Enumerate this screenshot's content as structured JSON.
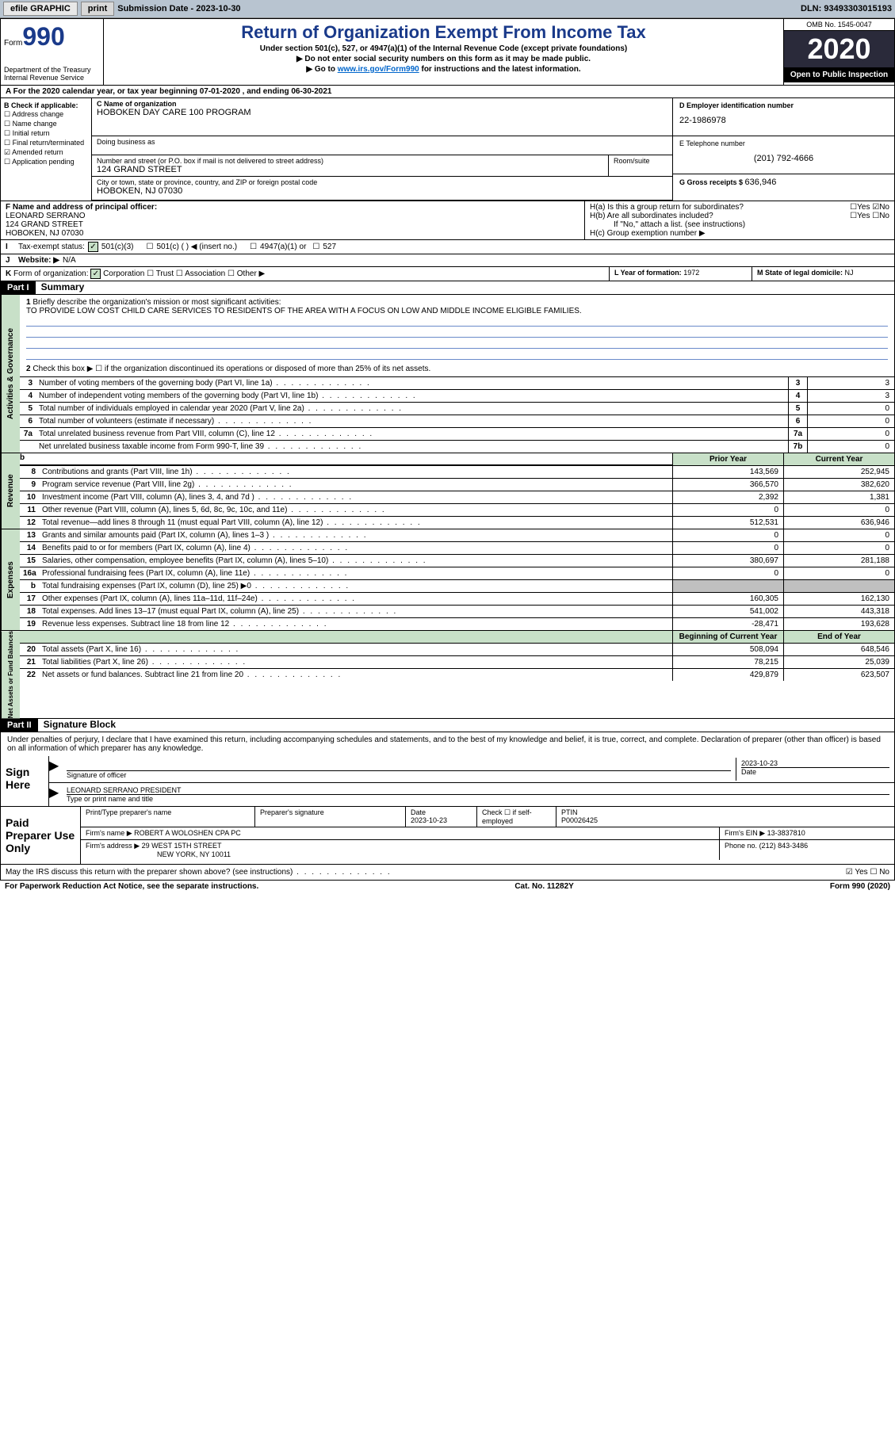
{
  "toolbar": {
    "efile": "efile GRAPHIC",
    "print": "print",
    "submission_label": "Submission Date - ",
    "submission_date": "2023-10-30",
    "dln_label": "DLN: ",
    "dln": "93493303015193"
  },
  "header": {
    "form_word": "Form",
    "form_num": "990",
    "title": "Return of Organization Exempt From Income Tax",
    "subtitle": "Under section 501(c), 527, or 4947(a)(1) of the Internal Revenue Code (except private foundations)",
    "note1": "▶ Do not enter social security numbers on this form as it may be made public.",
    "note2_pre": "▶ Go to ",
    "note2_link": "www.irs.gov/Form990",
    "note2_post": " for instructions and the latest information.",
    "dept": "Department of the Treasury\nInternal Revenue Service",
    "omb": "OMB No. 1545-0047",
    "year": "2020",
    "inspect": "Open to Public Inspection"
  },
  "line_a": "For the 2020 calendar year, or tax year beginning 07-01-2020    , and ending 06-30-2021",
  "box_b": {
    "hdr": "B Check if applicable:",
    "addr_change": "Address change",
    "name_change": "Name change",
    "initial": "Initial return",
    "final": "Final return/terminated",
    "amended": "Amended return",
    "application": "Application pending"
  },
  "org": {
    "name_label": "C Name of organization",
    "name": "HOBOKEN DAY CARE 100 PROGRAM",
    "dba_label": "Doing business as",
    "addr_label": "Number and street (or P.O. box if mail is not delivered to street address)",
    "addr": "124 GRAND STREET",
    "room_label": "Room/suite",
    "city_label": "City or town, state or province, country, and ZIP or foreign postal code",
    "city": "HOBOKEN, NJ  07030"
  },
  "ein": {
    "label": "D Employer identification number",
    "value": "22-1986978"
  },
  "phone": {
    "label": "E Telephone number",
    "value": "(201) 792-4666"
  },
  "receipts": {
    "label": "G Gross receipts $ ",
    "value": "636,946"
  },
  "officer": {
    "label": "F Name and address of principal officer:",
    "name": "LEONARD SERRANO",
    "addr1": "124 GRAND STREET",
    "addr2": "HOBOKEN, NJ  07030"
  },
  "h": {
    "a": "H(a)  Is this a group return for subordinates?",
    "b": "H(b)  Are all subordinates included?",
    "b_note": "If \"No,\" attach a list. (see instructions)",
    "c": "H(c)  Group exemption number ▶",
    "yes": "Yes",
    "no": "No"
  },
  "line_i": {
    "label": "I",
    "text": "Tax-exempt status:",
    "o1": "501(c)(3)",
    "o2": "501(c) (  ) ◀ (insert no.)",
    "o3": "4947(a)(1) or",
    "o4": "527"
  },
  "line_j": {
    "label": "J",
    "text": "Website: ▶",
    "value": "N/A"
  },
  "line_k": {
    "label": "K",
    "text": "Form of organization:",
    "o1": "Corporation",
    "o2": "Trust",
    "o3": "Association",
    "o4": "Other ▶"
  },
  "line_l": {
    "label": "L Year of formation: ",
    "value": "1972"
  },
  "line_m": {
    "label": "M State of legal domicile: ",
    "value": "NJ"
  },
  "part1": {
    "num": "Part I",
    "title": "Summary"
  },
  "governance": {
    "label": "Activities & Governance",
    "l1_label": "1",
    "l1_text": "Briefly describe the organization's mission or most significant activities:",
    "l1_desc": "TO PROVIDE LOW COST CHILD CARE SERVICES TO RESIDENTS OF THE AREA WITH A FOCUS ON LOW AND MIDDLE INCOME ELIGIBLE FAMILIES.",
    "l2": "Check this box ▶ ☐ if the organization discontinued its operations or disposed of more than 25% of its net assets.",
    "rows": [
      {
        "n": "3",
        "txt": "Number of voting members of the governing body (Part VI, line 1a)",
        "box": "3",
        "val": "3"
      },
      {
        "n": "4",
        "txt": "Number of independent voting members of the governing body (Part VI, line 1b)",
        "box": "4",
        "val": "3"
      },
      {
        "n": "5",
        "txt": "Total number of individuals employed in calendar year 2020 (Part V, line 2a)",
        "box": "5",
        "val": "0"
      },
      {
        "n": "6",
        "txt": "Total number of volunteers (estimate if necessary)",
        "box": "6",
        "val": "0"
      },
      {
        "n": "7a",
        "txt": "Total unrelated business revenue from Part VIII, column (C), line 12",
        "box": "7a",
        "val": "0"
      },
      {
        "n": "",
        "txt": "Net unrelated business taxable income from Form 990-T, line 39",
        "box": "7b",
        "val": "0"
      }
    ]
  },
  "revenue": {
    "label": "Revenue",
    "hdr_prior": "Prior Year",
    "hdr_current": "Current Year",
    "rows": [
      {
        "n": "8",
        "txt": "Contributions and grants (Part VIII, line 1h)",
        "p": "143,569",
        "c": "252,945"
      },
      {
        "n": "9",
        "txt": "Program service revenue (Part VIII, line 2g)",
        "p": "366,570",
        "c": "382,620"
      },
      {
        "n": "10",
        "txt": "Investment income (Part VIII, column (A), lines 3, 4, and 7d )",
        "p": "2,392",
        "c": "1,381"
      },
      {
        "n": "11",
        "txt": "Other revenue (Part VIII, column (A), lines 5, 6d, 8c, 9c, 10c, and 11e)",
        "p": "0",
        "c": "0"
      },
      {
        "n": "12",
        "txt": "Total revenue—add lines 8 through 11 (must equal Part VIII, column (A), line 12)",
        "p": "512,531",
        "c": "636,946"
      }
    ]
  },
  "expenses": {
    "label": "Expenses",
    "rows": [
      {
        "n": "13",
        "txt": "Grants and similar amounts paid (Part IX, column (A), lines 1–3 )",
        "p": "0",
        "c": "0"
      },
      {
        "n": "14",
        "txt": "Benefits paid to or for members (Part IX, column (A), line 4)",
        "p": "0",
        "c": "0"
      },
      {
        "n": "15",
        "txt": "Salaries, other compensation, employee benefits (Part IX, column (A), lines 5–10)",
        "p": "380,697",
        "c": "281,188"
      },
      {
        "n": "16a",
        "txt": "Professional fundraising fees (Part IX, column (A), line 11e)",
        "p": "0",
        "c": "0"
      },
      {
        "n": "b",
        "txt": "Total fundraising expenses (Part IX, column (D), line 25) ▶0",
        "p": "",
        "c": "",
        "shade": true
      },
      {
        "n": "17",
        "txt": "Other expenses (Part IX, column (A), lines 11a–11d, 11f–24e)",
        "p": "160,305",
        "c": "162,130"
      },
      {
        "n": "18",
        "txt": "Total expenses. Add lines 13–17 (must equal Part IX, column (A), line 25)",
        "p": "541,002",
        "c": "443,318"
      },
      {
        "n": "19",
        "txt": "Revenue less expenses. Subtract line 18 from line 12",
        "p": "-28,471",
        "c": "193,628"
      }
    ]
  },
  "netassets": {
    "label": "Net Assets or Fund Balances",
    "hdr_begin": "Beginning of Current Year",
    "hdr_end": "End of Year",
    "rows": [
      {
        "n": "20",
        "txt": "Total assets (Part X, line 16)",
        "p": "508,094",
        "c": "648,546"
      },
      {
        "n": "21",
        "txt": "Total liabilities (Part X, line 26)",
        "p": "78,215",
        "c": "25,039"
      },
      {
        "n": "22",
        "txt": "Net assets or fund balances. Subtract line 21 from line 20",
        "p": "429,879",
        "c": "623,507"
      }
    ]
  },
  "part2": {
    "num": "Part II",
    "title": "Signature Block"
  },
  "sig": {
    "penalty": "Under penalties of perjury, I declare that I have examined this return, including accompanying schedules and statements, and to the best of my knowledge and belief, it is true, correct, and complete. Declaration of preparer (other than officer) is based on all information of which preparer has any knowledge.",
    "sign_here": "Sign Here",
    "sig_officer": "Signature of officer",
    "sig_date": "2023-10-23",
    "date_label": "Date",
    "name_title": "LEONARD SERRANO PRESIDENT",
    "type_label": "Type or print name and title"
  },
  "preparer": {
    "label": "Paid Preparer Use Only",
    "h_name": "Print/Type preparer's name",
    "h_sig": "Preparer's signature",
    "h_date": "Date",
    "date": "2023-10-23",
    "h_check": "Check ☐ if self-employed",
    "h_ptin": "PTIN",
    "ptin": "P00026425",
    "firm_label": "Firm's name    ▶",
    "firm": "ROBERT A WOLOSHEN CPA PC",
    "ein_label": "Firm's EIN ▶",
    "ein": "13-3837810",
    "addr_label": "Firm's address ▶",
    "addr1": "29 WEST 15TH STREET",
    "addr2": "NEW YORK, NY  10011",
    "phone_label": "Phone no.",
    "phone": "(212) 843-3486"
  },
  "footer": {
    "discuss": "May the IRS discuss this return with the preparer shown above? (see instructions)",
    "yes": "Yes",
    "no": "No",
    "pra": "For Paperwork Reduction Act Notice, see the separate instructions.",
    "cat": "Cat. No. 11282Y",
    "form": "Form 990 (2020)"
  }
}
